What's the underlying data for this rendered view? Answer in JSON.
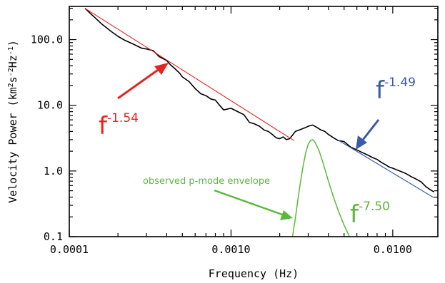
{
  "chart_data": {
    "type": "line",
    "xlabel": "Frequency (Hz)",
    "ylabel_parts": [
      "Velocity Power (km",
      "2",
      "s",
      "-2",
      "Hz",
      "-1",
      ")"
    ],
    "x_scale": "log",
    "y_scale": "log",
    "xlim": [
      0.0001,
      0.019
    ],
    "ylim": [
      0.1,
      320
    ],
    "x_ticks": [
      {
        "value": 0.0001,
        "label": "0.0001"
      },
      {
        "value": 0.001,
        "label": "0.0010"
      },
      {
        "value": 0.01,
        "label": "0.0100"
      }
    ],
    "y_ticks": [
      {
        "value": 0.1,
        "label": "0.1"
      },
      {
        "value": 1,
        "label": "1.0"
      },
      {
        "value": 10,
        "label": "10.0"
      },
      {
        "value": 100,
        "label": "100.0"
      }
    ],
    "series": [
      {
        "role": "observed velocity power spectrum",
        "color": "#000000",
        "points": [
          [
            0.000125,
            300
          ],
          [
            0.00014,
            230
          ],
          [
            0.00016,
            170
          ],
          [
            0.00018,
            135
          ],
          [
            0.0002,
            112
          ],
          [
            0.00022,
            98
          ],
          [
            0.00025,
            85
          ],
          [
            0.00028,
            74
          ],
          [
            0.0003,
            72
          ],
          [
            0.00033,
            68
          ],
          [
            0.00036,
            55
          ],
          [
            0.0004,
            48
          ],
          [
            0.00042,
            42
          ],
          [
            0.00045,
            36
          ],
          [
            0.00048,
            31
          ],
          [
            0.0005,
            27
          ],
          [
            0.00055,
            23
          ],
          [
            0.0006,
            18
          ],
          [
            0.00065,
            15
          ],
          [
            0.0007,
            14
          ],
          [
            0.00075,
            12.5
          ],
          [
            0.0008,
            12
          ],
          [
            0.00085,
            10
          ],
          [
            0.0009,
            8.5
          ],
          [
            0.001,
            9
          ],
          [
            0.0011,
            8
          ],
          [
            0.0012,
            7.2
          ],
          [
            0.0013,
            5.5
          ],
          [
            0.0014,
            5.2
          ],
          [
            0.0015,
            4.8
          ],
          [
            0.0016,
            4.2
          ],
          [
            0.0017,
            4.0
          ],
          [
            0.0018,
            3.6
          ],
          [
            0.0019,
            3.2
          ],
          [
            0.002,
            3.1
          ],
          [
            0.0021,
            3.3
          ],
          [
            0.0022,
            3.0
          ],
          [
            0.0023,
            3.1
          ],
          [
            0.0024,
            3.5
          ],
          [
            0.0025,
            4.0
          ],
          [
            0.0027,
            4.3
          ],
          [
            0.0029,
            4.6
          ],
          [
            0.003,
            4.8
          ],
          [
            0.0032,
            5.0
          ],
          [
            0.0034,
            4.6
          ],
          [
            0.0036,
            4.2
          ],
          [
            0.0038,
            4.0
          ],
          [
            0.004,
            3.6
          ],
          [
            0.0043,
            3.2
          ],
          [
            0.0046,
            2.9
          ],
          [
            0.005,
            2.8
          ],
          [
            0.0055,
            2.3
          ],
          [
            0.006,
            2.1
          ],
          [
            0.0065,
            1.9
          ],
          [
            0.007,
            1.75
          ],
          [
            0.0075,
            1.6
          ],
          [
            0.008,
            1.5
          ],
          [
            0.0085,
            1.35
          ],
          [
            0.009,
            1.25
          ],
          [
            0.0095,
            1.15
          ],
          [
            0.01,
            1.1
          ],
          [
            0.011,
            1.0
          ],
          [
            0.012,
            0.92
          ],
          [
            0.013,
            0.82
          ],
          [
            0.014,
            0.75
          ],
          [
            0.015,
            0.68
          ],
          [
            0.016,
            0.58
          ],
          [
            0.017,
            0.52
          ],
          [
            0.018,
            0.48
          ]
        ]
      },
      {
        "role": "low-frequency power-law fit",
        "color": "#e2251f",
        "points": [
          [
            0.000125,
            300
          ],
          [
            0.00245,
            2.9
          ]
        ]
      },
      {
        "role": "high-frequency power-law fit",
        "color": "#3a5ba8",
        "points": [
          [
            0.0046,
            2.95
          ],
          [
            0.018,
            0.39
          ]
        ]
      },
      {
        "role": "p-mode envelope",
        "color": "#5cb83a",
        "points": [
          [
            0.0024,
            0.1
          ],
          [
            0.0025,
            0.19
          ],
          [
            0.0026,
            0.39
          ],
          [
            0.0027,
            0.73
          ],
          [
            0.0028,
            1.25
          ],
          [
            0.0029,
            1.9
          ],
          [
            0.003,
            2.55
          ],
          [
            0.0031,
            2.92
          ],
          [
            0.0032,
            3.0
          ],
          [
            0.0033,
            2.75
          ],
          [
            0.0035,
            2.05
          ],
          [
            0.0037,
            1.35
          ],
          [
            0.004,
            0.7
          ],
          [
            0.0043,
            0.4
          ],
          [
            0.0046,
            0.25
          ],
          [
            0.005,
            0.15
          ],
          [
            0.0054,
            0.1
          ]
        ]
      }
    ],
    "annotations": [
      {
        "base": "f",
        "exponent": "-1.54",
        "color": "#e2251f"
      },
      {
        "base": "f",
        "exponent": "-1.49",
        "color": "#3a5ba8"
      },
      {
        "base": "f",
        "exponent": "-7.50",
        "color": "#5cb83a"
      },
      {
        "text": "observed p-mode envelope",
        "color": "#5cb83a"
      }
    ]
  }
}
